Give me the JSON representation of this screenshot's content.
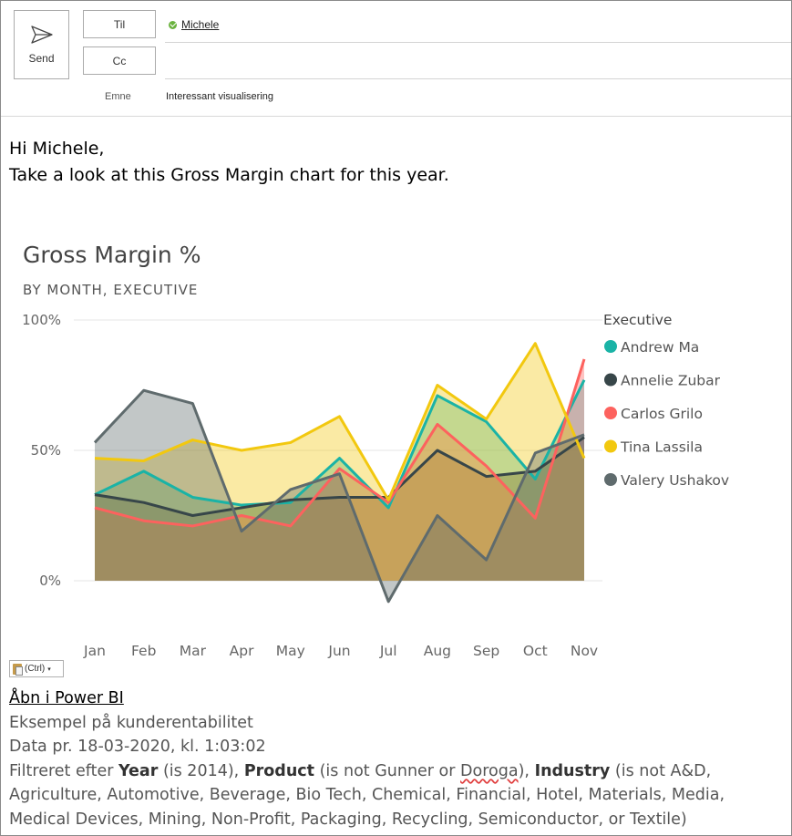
{
  "header": {
    "send_label": "Send",
    "to_label": "Til",
    "cc_label": "Cc",
    "recipient": "Michele",
    "subject_label": "Emne",
    "subject_value": "Interessant visualisering"
  },
  "body": {
    "greeting_line1": "Hi Michele,",
    "greeting_line2": "Take a look at this Gross Margin chart for this year."
  },
  "paste_badge": "(Ctrl)",
  "chart_data": {
    "type": "area",
    "title": "Gross Margin %",
    "subtitle": "BY MONTH, EXECUTIVE",
    "categories": [
      "Jan",
      "Feb",
      "Mar",
      "Apr",
      "May",
      "Jun",
      "Jul",
      "Aug",
      "Sep",
      "Oct",
      "Nov"
    ],
    "y_ticks": [
      "100%",
      "50%",
      "0%"
    ],
    "ylim": [
      0,
      100
    ],
    "legend_title": "Executive",
    "legend_position": "right",
    "series": [
      {
        "name": "Andrew Ma",
        "color": "#1ab3a6",
        "values": [
          33,
          42,
          32,
          29,
          30,
          47,
          28,
          71,
          61,
          39,
          77
        ]
      },
      {
        "name": "Annelie Zubar",
        "color": "#374649",
        "values": [
          33,
          30,
          25,
          28,
          31,
          32,
          32,
          50,
          40,
          42,
          55
        ]
      },
      {
        "name": "Carlos Grilo",
        "color": "#fd625e",
        "values": [
          28,
          23,
          21,
          25,
          21,
          43,
          30,
          60,
          44,
          24,
          85
        ]
      },
      {
        "name": "Tina Lassila",
        "color": "#f2c80f",
        "values": [
          47,
          46,
          54,
          50,
          53,
          63,
          31,
          75,
          62,
          91,
          47
        ]
      },
      {
        "name": "Valery Ushakov",
        "color": "#5f6b6d",
        "values": [
          53,
          73,
          68,
          19,
          35,
          41,
          -8,
          25,
          8,
          49,
          56
        ]
      }
    ]
  },
  "footer": {
    "open_link": "Åbn i Power BI",
    "report_name": "Eksempel på kunderentabilitet",
    "data_as_of": "Data pr. 18-03-2020, kl. 1:03:02",
    "filter_prefix": "Filtreret efter",
    "filter_year_label": "Year",
    "filter_year_value": "(is 2014),",
    "filter_product_label": "Product",
    "filter_product_value_a": "(is not Gunner or",
    "filter_product_value_b": "Doroga",
    "filter_product_value_c": "),",
    "filter_industry_label": "Industry",
    "filter_industry_value": "(is not A&D, Agriculture, Automotive, Beverage, Bio Tech, Chemical, Financial, Hotel, Materials, Media, Medical Devices, Mining, Non-Profit, Packaging, Recycling, Semiconductor, or Textile)"
  }
}
